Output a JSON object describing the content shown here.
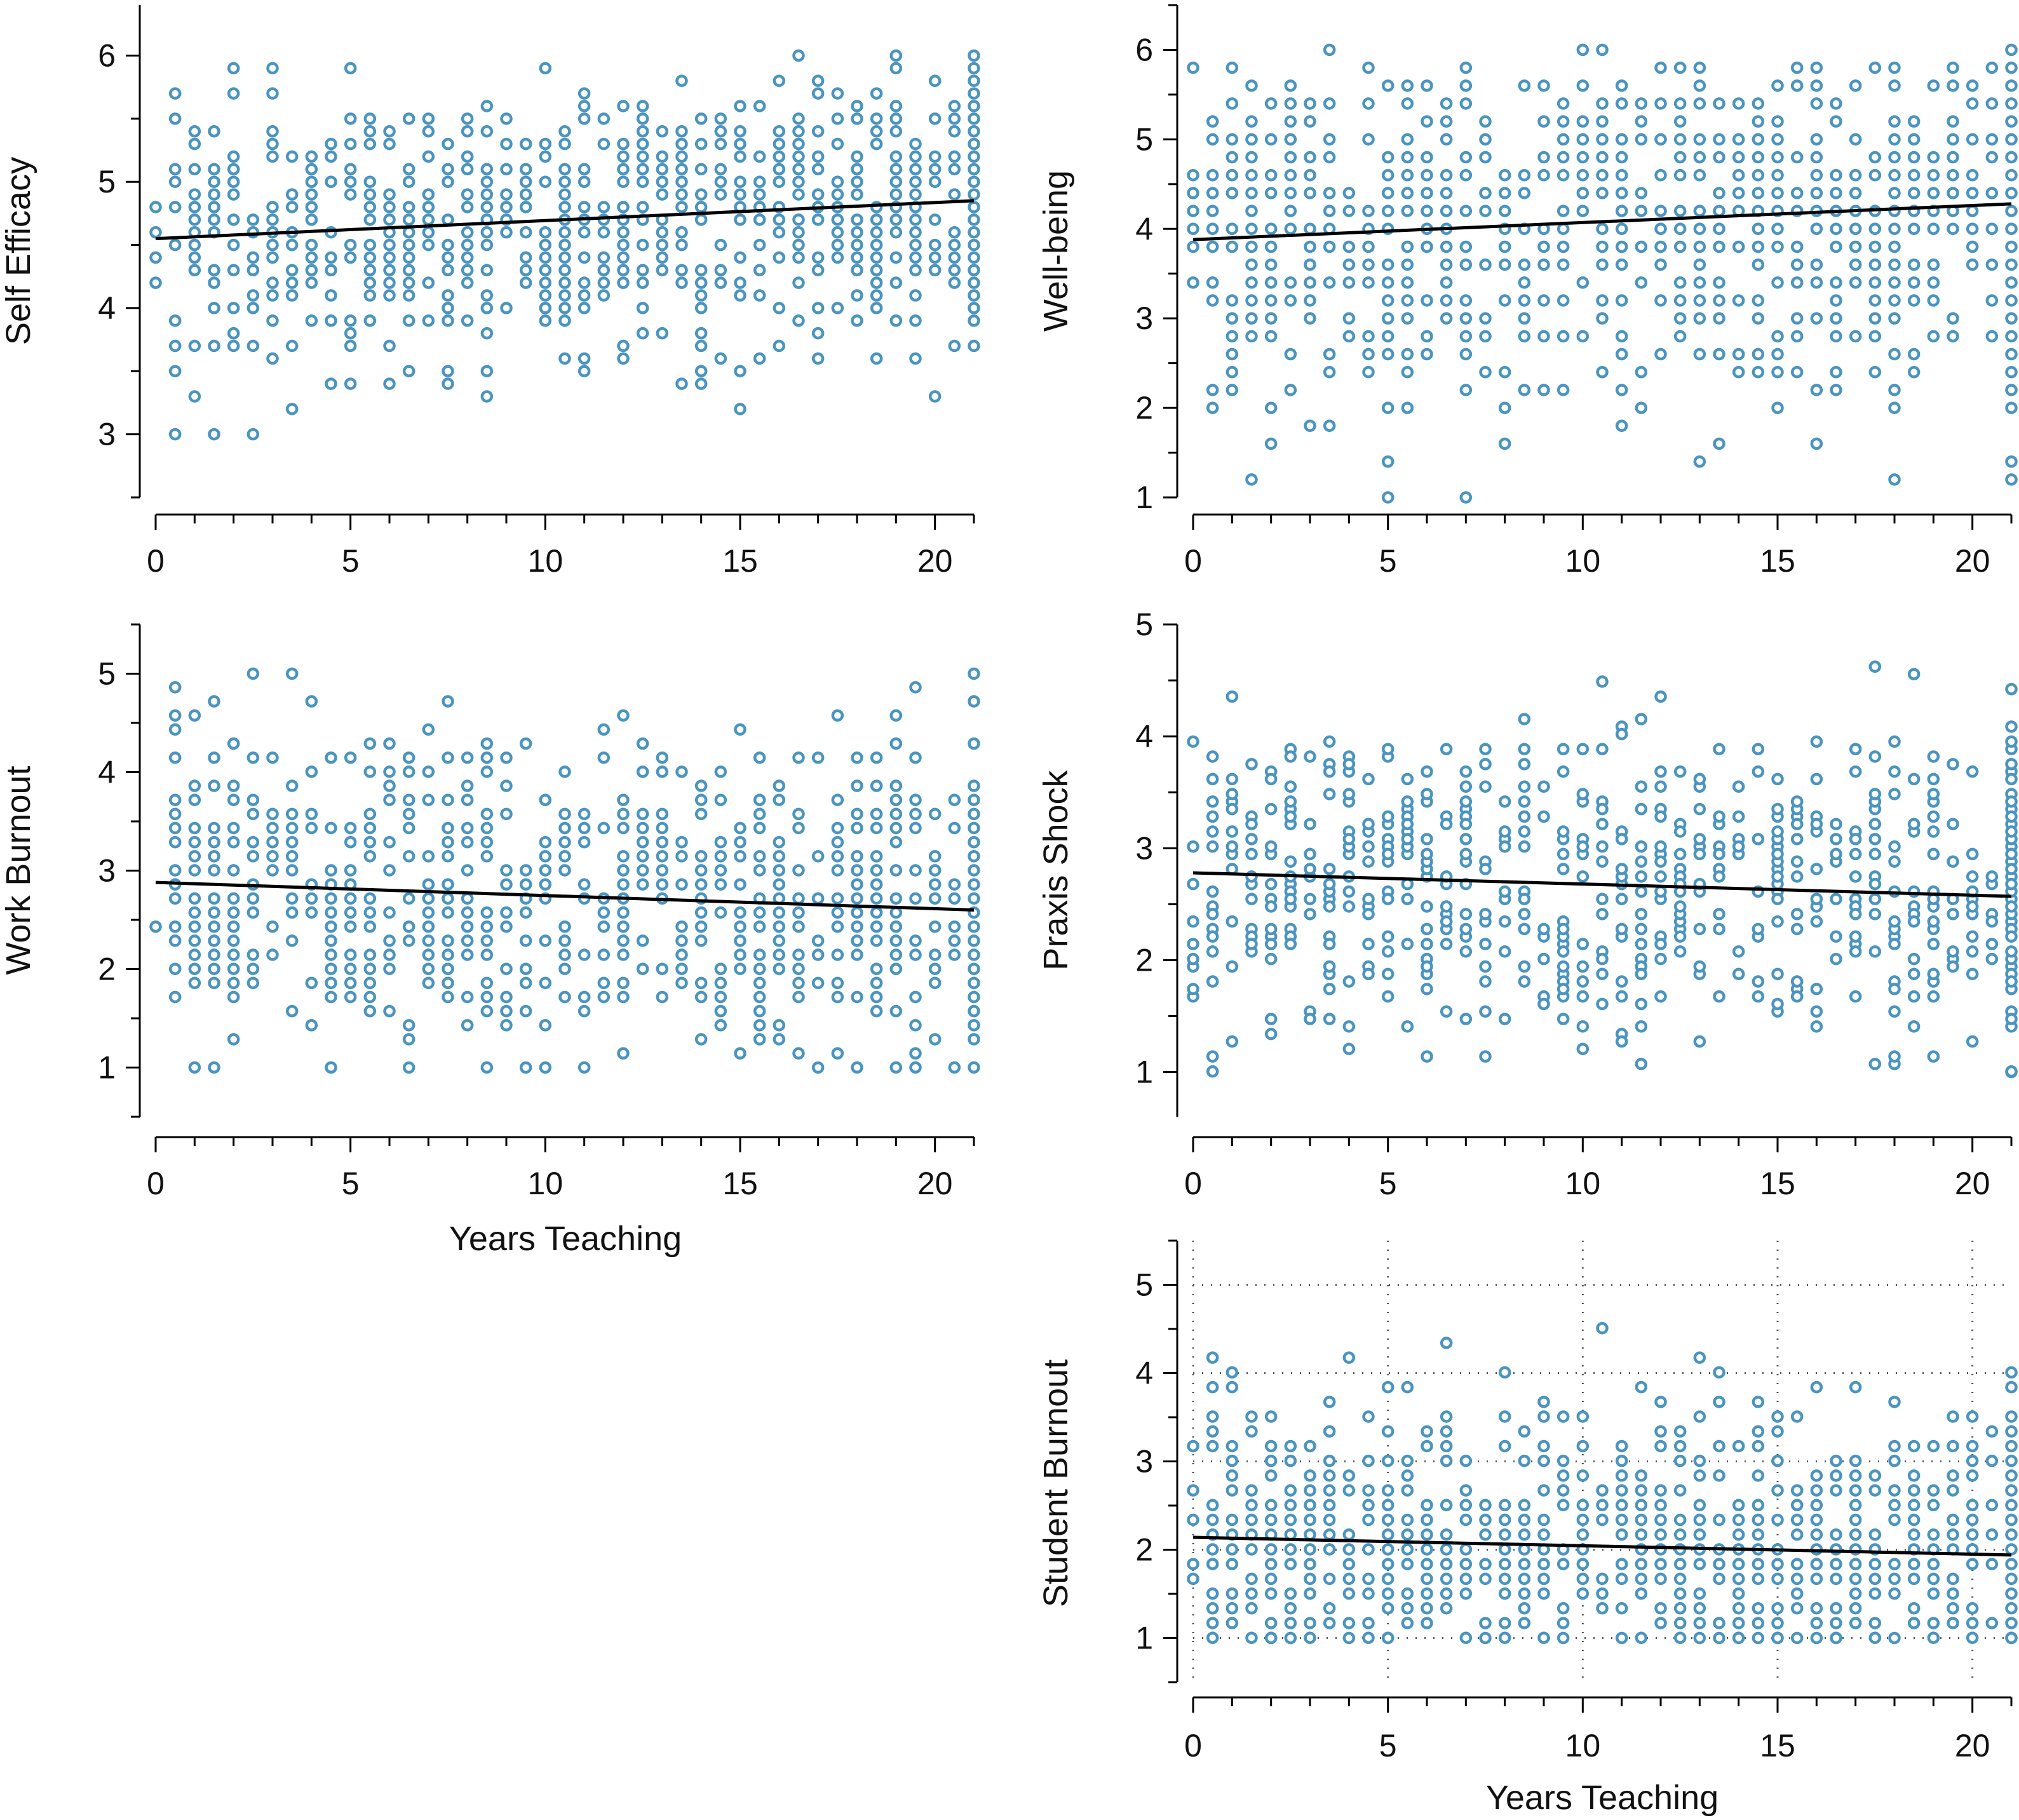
{
  "colors": {
    "point": "#4a94c0",
    "trend": "#000000",
    "axis": "#000000",
    "grid": "#555555"
  },
  "chart_data": [
    {
      "type": "scatter",
      "id": "self-efficacy",
      "ylabel": "Self Efficacy",
      "xlabel": "",
      "xlim": [
        0,
        21
      ],
      "ylim": [
        2.5,
        6.4
      ],
      "xticks": [
        0,
        5,
        10,
        15,
        20
      ],
      "yticks": [
        3,
        4,
        5,
        6
      ],
      "grid": false,
      "trend": [
        [
          0,
          4.55
        ],
        [
          21,
          4.85
        ]
      ],
      "y_mean": 4.65,
      "y_sd": 0.55,
      "y_step": 0.1,
      "n": 520,
      "seed": 11
    },
    {
      "type": "scatter",
      "id": "well-being",
      "ylabel": "Well-being",
      "xlabel": "",
      "xlim": [
        0,
        21
      ],
      "ylim": [
        1,
        6.5
      ],
      "xticks": [
        0,
        5,
        10,
        15,
        20
      ],
      "yticks": [
        1,
        2,
        3,
        4,
        5,
        6
      ],
      "grid": false,
      "trend": [
        [
          0,
          3.88
        ],
        [
          21,
          4.28
        ]
      ],
      "y_mean": 4.0,
      "y_sd": 1.0,
      "y_step": 0.2,
      "n": 520,
      "seed": 23
    },
    {
      "type": "scatter",
      "id": "work-burnout",
      "ylabel": "Work Burnout",
      "xlabel": "Years Teaching",
      "xlim": [
        0,
        21
      ],
      "ylim": [
        0.5,
        5.5
      ],
      "xticks": [
        0,
        5,
        10,
        15,
        20
      ],
      "yticks": [
        1,
        2,
        3,
        4,
        5
      ],
      "grid": false,
      "trend": [
        [
          0,
          2.88
        ],
        [
          21,
          2.6
        ]
      ],
      "y_mean": 2.8,
      "y_sd": 0.8,
      "y_step": 0.143,
      "n": 520,
      "seed": 37
    },
    {
      "type": "scatter",
      "id": "praxis-shock",
      "ylabel": "Praxis Shock",
      "xlabel": "",
      "xlim": [
        0,
        21
      ],
      "ylim": [
        0.6,
        5
      ],
      "xticks": [
        0,
        5,
        10,
        15,
        20
      ],
      "yticks": [
        1,
        2,
        3,
        4,
        5
      ],
      "grid": false,
      "trend": [
        [
          0,
          2.78
        ],
        [
          21,
          2.57
        ]
      ],
      "y_mean": 2.7,
      "y_sd": 0.7,
      "y_step": 0.067,
      "n": 560,
      "seed": 41
    },
    {
      "type": "scatter",
      "id": "student-burnout",
      "ylabel": "Student Burnout",
      "xlabel": "Years Teaching",
      "xlim": [
        0,
        21
      ],
      "ylim": [
        0.5,
        5.5
      ],
      "xticks": [
        0,
        5,
        10,
        15,
        20
      ],
      "yticks": [
        1,
        2,
        3,
        4,
        5
      ],
      "grid": true,
      "trend": [
        [
          0,
          2.14
        ],
        [
          21,
          1.94
        ]
      ],
      "y_mean": 2.1,
      "y_sd": 0.8,
      "y_step": 0.167,
      "n": 480,
      "seed": 53
    }
  ]
}
